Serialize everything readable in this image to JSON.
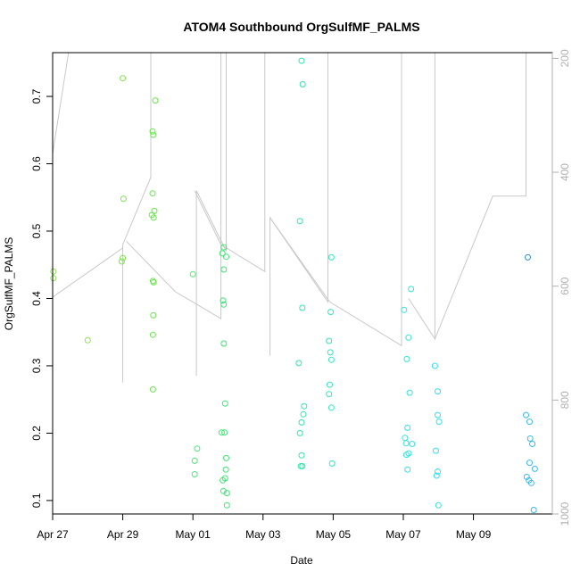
{
  "chart_data": {
    "type": "scatter",
    "title": "ATOM4 Southbound OrgSulfMF_PALMS",
    "xlabel": "Date",
    "ylabel": "OrgSulfMF_PALMS",
    "x_unit": "days in May 2018 (Apr 27 = -4, May 01 = 1)",
    "xlim": [
      -4.0,
      10.25
    ],
    "ylim": [
      0.08,
      0.765
    ],
    "x_ticks": [
      {
        "value": -4,
        "label": "Apr 27"
      },
      {
        "value": -2,
        "label": "Apr 29"
      },
      {
        "value": 0,
        "label": "May 01"
      },
      {
        "value": 2,
        "label": "May 03"
      },
      {
        "value": 4,
        "label": "May 05"
      },
      {
        "value": 6,
        "label": "May 07"
      },
      {
        "value": 8,
        "label": "May 09"
      }
    ],
    "y_ticks": [
      0.1,
      0.2,
      0.3,
      0.4,
      0.5,
      0.6,
      0.7
    ],
    "right_axis": {
      "ticks": [
        200,
        400,
        600,
        800,
        1000
      ],
      "range": [
        190,
        1000
      ],
      "reversed": true,
      "color": "#b0b0b0"
    },
    "grid": false,
    "points": [
      {
        "x": -3.98,
        "y": 0.44,
        "color": "#8ee04a"
      },
      {
        "x": -3.98,
        "y": 0.43,
        "color": "#8ee04a"
      },
      {
        "x": -3.0,
        "y": 0.338,
        "color": "#8ee04a"
      },
      {
        "x": -2.0,
        "y": 0.727,
        "color": "#7ae448"
      },
      {
        "x": -1.98,
        "y": 0.548,
        "color": "#7ae448"
      },
      {
        "x": -2.0,
        "y": 0.46,
        "color": "#7ae448"
      },
      {
        "x": -2.03,
        "y": 0.455,
        "color": "#7ae448"
      },
      {
        "x": -1.15,
        "y": 0.648,
        "color": "#66e84a"
      },
      {
        "x": -1.13,
        "y": 0.643,
        "color": "#66e84a"
      },
      {
        "x": -1.07,
        "y": 0.694,
        "color": "#66e84a"
      },
      {
        "x": -1.15,
        "y": 0.556,
        "color": "#66e84a"
      },
      {
        "x": -1.1,
        "y": 0.53,
        "color": "#66e84a"
      },
      {
        "x": -1.17,
        "y": 0.524,
        "color": "#66e84a"
      },
      {
        "x": -1.12,
        "y": 0.52,
        "color": "#66e84a"
      },
      {
        "x": -1.14,
        "y": 0.426,
        "color": "#66e84a"
      },
      {
        "x": -1.12,
        "y": 0.424,
        "color": "#66e84a"
      },
      {
        "x": -1.13,
        "y": 0.375,
        "color": "#66e84a"
      },
      {
        "x": -1.14,
        "y": 0.346,
        "color": "#66e84a"
      },
      {
        "x": -1.14,
        "y": 0.265,
        "color": "#66e84a"
      },
      {
        "x": 0.0,
        "y": 0.436,
        "color": "#4ee87a"
      },
      {
        "x": 0.12,
        "y": 0.177,
        "color": "#4ee87a"
      },
      {
        "x": 0.05,
        "y": 0.159,
        "color": "#4ee87a"
      },
      {
        "x": 0.05,
        "y": 0.139,
        "color": "#4ee87a"
      },
      {
        "x": 0.88,
        "y": 0.476,
        "color": "#3ae870"
      },
      {
        "x": 0.84,
        "y": 0.467,
        "color": "#3ae870"
      },
      {
        "x": 0.95,
        "y": 0.462,
        "color": "#3ae870"
      },
      {
        "x": 0.88,
        "y": 0.443,
        "color": "#3ae870"
      },
      {
        "x": 0.86,
        "y": 0.397,
        "color": "#3ae870"
      },
      {
        "x": 0.88,
        "y": 0.391,
        "color": "#3ae870"
      },
      {
        "x": 0.88,
        "y": 0.333,
        "color": "#3ae870"
      },
      {
        "x": 0.92,
        "y": 0.244,
        "color": "#3ae870"
      },
      {
        "x": 0.82,
        "y": 0.201,
        "color": "#3ae870"
      },
      {
        "x": 0.9,
        "y": 0.201,
        "color": "#3ae870"
      },
      {
        "x": 0.95,
        "y": 0.163,
        "color": "#3ae870"
      },
      {
        "x": 0.94,
        "y": 0.146,
        "color": "#3ae870"
      },
      {
        "x": 0.92,
        "y": 0.133,
        "color": "#3ae870"
      },
      {
        "x": 0.85,
        "y": 0.13,
        "color": "#3ae870"
      },
      {
        "x": 0.87,
        "y": 0.114,
        "color": "#3ae870"
      },
      {
        "x": 0.97,
        "y": 0.111,
        "color": "#3ae870"
      },
      {
        "x": 0.97,
        "y": 0.093,
        "color": "#3ae870"
      },
      {
        "x": 3.1,
        "y": 0.753,
        "color": "#2ee8a8"
      },
      {
        "x": 3.13,
        "y": 0.718,
        "color": "#2ee8a8"
      },
      {
        "x": 3.05,
        "y": 0.515,
        "color": "#2ee8a8"
      },
      {
        "x": 3.12,
        "y": 0.386,
        "color": "#2ee8a8"
      },
      {
        "x": 3.02,
        "y": 0.304,
        "color": "#2ee8a8"
      },
      {
        "x": 3.17,
        "y": 0.24,
        "color": "#2ee8a8"
      },
      {
        "x": 3.15,
        "y": 0.228,
        "color": "#2ee8a8"
      },
      {
        "x": 3.1,
        "y": 0.216,
        "color": "#2ee8a8"
      },
      {
        "x": 3.05,
        "y": 0.2,
        "color": "#2ee8a8"
      },
      {
        "x": 3.1,
        "y": 0.167,
        "color": "#2ee8a8"
      },
      {
        "x": 3.08,
        "y": 0.151,
        "color": "#2ee8a8"
      },
      {
        "x": 3.12,
        "y": 0.151,
        "color": "#2ee8a8"
      },
      {
        "x": 3.95,
        "y": 0.461,
        "color": "#2ee8c0"
      },
      {
        "x": 3.93,
        "y": 0.38,
        "color": "#2ee8c0"
      },
      {
        "x": 3.88,
        "y": 0.337,
        "color": "#2ee8c0"
      },
      {
        "x": 3.92,
        "y": 0.32,
        "color": "#2ee8c0"
      },
      {
        "x": 3.95,
        "y": 0.309,
        "color": "#2ee8c0"
      },
      {
        "x": 3.9,
        "y": 0.272,
        "color": "#2ee8c0"
      },
      {
        "x": 3.88,
        "y": 0.258,
        "color": "#2ee8c0"
      },
      {
        "x": 3.95,
        "y": 0.238,
        "color": "#2ee8c0"
      },
      {
        "x": 3.97,
        "y": 0.155,
        "color": "#2ee8c0"
      },
      {
        "x": 6.02,
        "y": 0.383,
        "color": "#2ee4e0"
      },
      {
        "x": 6.22,
        "y": 0.414,
        "color": "#2ee4e0"
      },
      {
        "x": 6.15,
        "y": 0.342,
        "color": "#2ee4e0"
      },
      {
        "x": 6.1,
        "y": 0.31,
        "color": "#2ee4e0"
      },
      {
        "x": 6.18,
        "y": 0.26,
        "color": "#2ee4e0"
      },
      {
        "x": 6.12,
        "y": 0.208,
        "color": "#2ee4e0"
      },
      {
        "x": 6.05,
        "y": 0.193,
        "color": "#2ee4e0"
      },
      {
        "x": 6.08,
        "y": 0.185,
        "color": "#2ee4e0"
      },
      {
        "x": 6.25,
        "y": 0.184,
        "color": "#2ee4e0"
      },
      {
        "x": 6.15,
        "y": 0.17,
        "color": "#2ee4e0"
      },
      {
        "x": 6.09,
        "y": 0.168,
        "color": "#2ee4e0"
      },
      {
        "x": 6.12,
        "y": 0.146,
        "color": "#2ee4e0"
      },
      {
        "x": 6.9,
        "y": 0.3,
        "color": "#2ee0f0"
      },
      {
        "x": 6.98,
        "y": 0.262,
        "color": "#2ee0f0"
      },
      {
        "x": 6.98,
        "y": 0.227,
        "color": "#2ee0f0"
      },
      {
        "x": 7.02,
        "y": 0.217,
        "color": "#2ee0f0"
      },
      {
        "x": 6.93,
        "y": 0.174,
        "color": "#2ee0f0"
      },
      {
        "x": 6.98,
        "y": 0.143,
        "color": "#2ee0f0"
      },
      {
        "x": 6.95,
        "y": 0.137,
        "color": "#2ee0f0"
      },
      {
        "x": 7.0,
        "y": 0.093,
        "color": "#2ee0f0"
      },
      {
        "x": 9.55,
        "y": 0.461,
        "color": "#2a8ee8"
      },
      {
        "x": 9.5,
        "y": 0.227,
        "color": "#38b8f0"
      },
      {
        "x": 9.6,
        "y": 0.217,
        "color": "#38b8f0"
      },
      {
        "x": 9.62,
        "y": 0.192,
        "color": "#38b8f0"
      },
      {
        "x": 9.68,
        "y": 0.184,
        "color": "#38b8f0"
      },
      {
        "x": 9.6,
        "y": 0.156,
        "color": "#38b8f0"
      },
      {
        "x": 9.75,
        "y": 0.147,
        "color": "#38b8f0"
      },
      {
        "x": 9.52,
        "y": 0.135,
        "color": "#38b8f0"
      },
      {
        "x": 9.58,
        "y": 0.13,
        "color": "#38b8f0"
      },
      {
        "x": 9.65,
        "y": 0.126,
        "color": "#38b8f0"
      },
      {
        "x": 9.72,
        "y": 0.086,
        "color": "#38b8f0"
      }
    ],
    "altitude_trace": {
      "color": "#c8c8c8",
      "segments": [
        [
          [
            -4.0,
            0.4
          ],
          [
            -4.0,
            0.615
          ],
          [
            -3.5,
            0.78
          ]
        ],
        [
          [
            -4.0,
            0.402
          ],
          [
            -2.0,
            0.475
          ]
        ],
        [
          [
            -2.0,
            0.275
          ],
          [
            -2.0,
            0.48
          ],
          [
            -1.2,
            0.58
          ],
          [
            -1.2,
            0.78
          ]
        ],
        [
          [
            -1.9,
            0.485
          ],
          [
            -0.5,
            0.41
          ],
          [
            0.8,
            0.37
          ],
          [
            0.8,
            0.78
          ]
        ],
        [
          [
            0.1,
            0.285
          ],
          [
            0.1,
            0.56
          ],
          [
            0.95,
            0.47
          ],
          [
            0.95,
            0.78
          ]
        ],
        [
          [
            0.05,
            0.56
          ],
          [
            0.8,
            0.48
          ],
          [
            2.05,
            0.44
          ],
          [
            2.05,
            0.78
          ]
        ],
        [
          [
            2.2,
            0.315
          ],
          [
            2.2,
            0.52
          ],
          [
            3.85,
            0.395
          ],
          [
            3.85,
            0.78
          ]
        ],
        [
          [
            2.2,
            0.52
          ],
          [
            3.9,
            0.395
          ],
          [
            5.95,
            0.33
          ],
          [
            5.95,
            0.78
          ]
        ],
        [
          [
            6.15,
            0.4
          ],
          [
            6.9,
            0.34
          ],
          [
            6.9,
            0.78
          ]
        ],
        [
          [
            6.9,
            0.34
          ],
          [
            8.55,
            0.552
          ],
          [
            9.5,
            0.552
          ],
          [
            9.5,
            0.78
          ]
        ]
      ]
    }
  }
}
